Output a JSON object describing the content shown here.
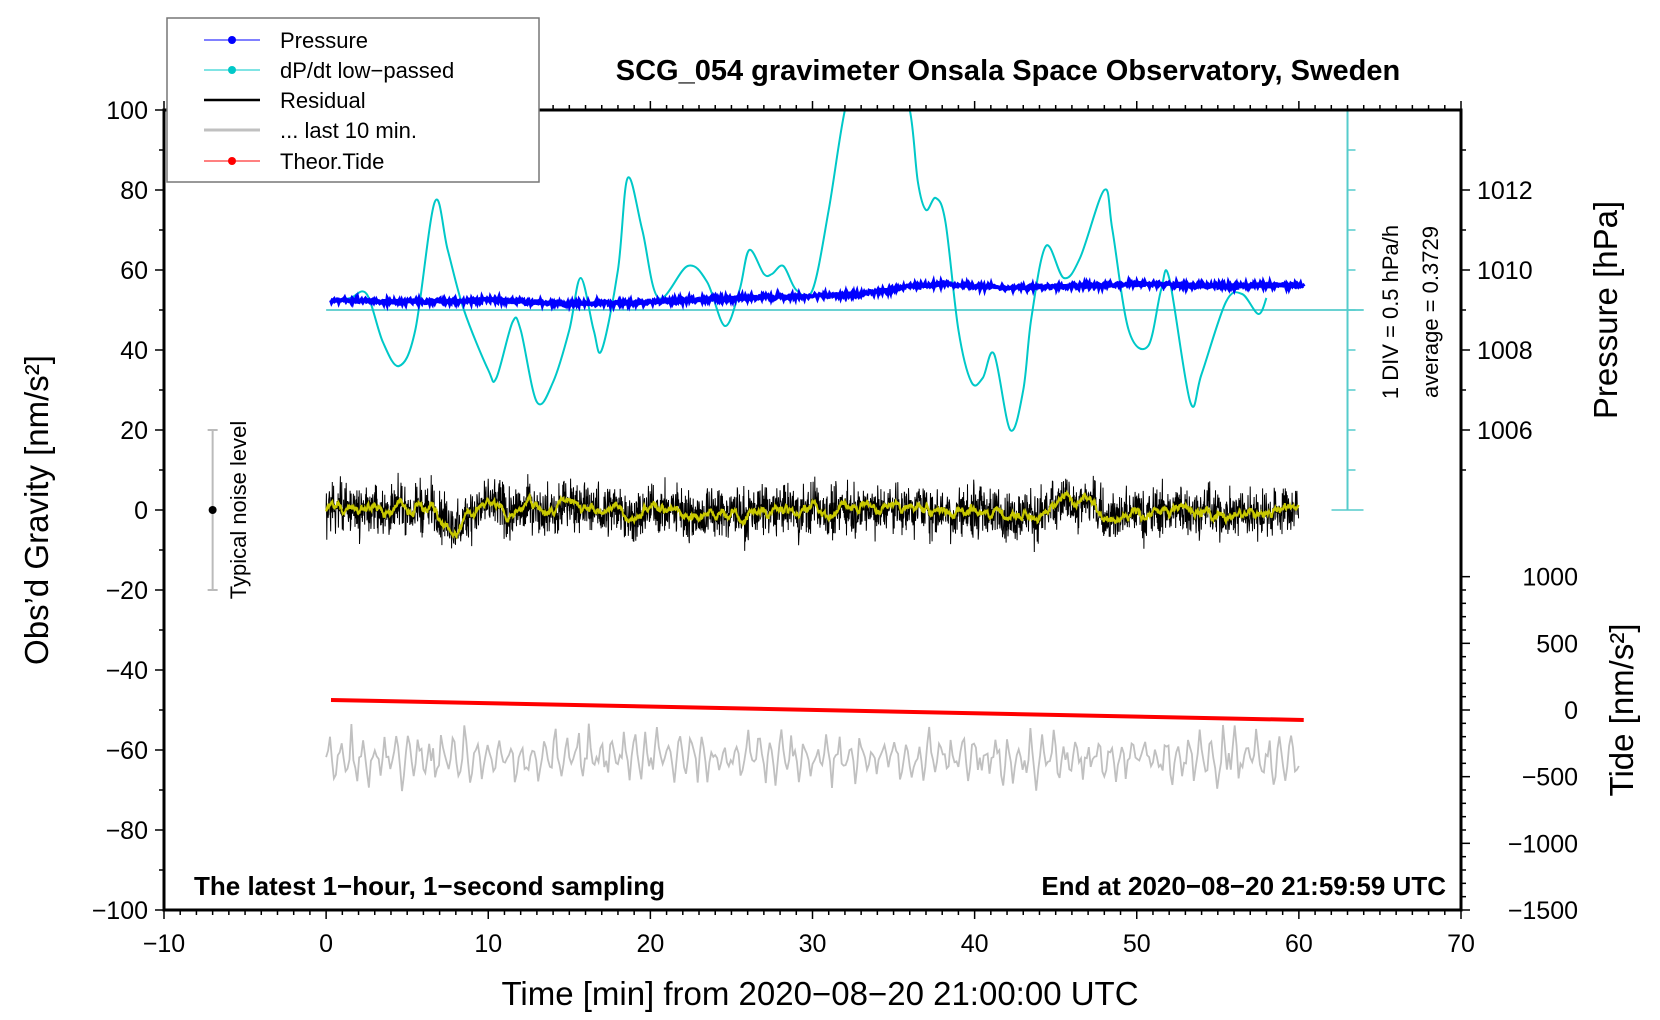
{
  "chart_data": {
    "type": "line",
    "title": "SCG_054 gravimeter Onsala Space Observatory, Sweden",
    "xlabel": "Time [min] from 2020−08−20 21:00:00 UTC",
    "ylabel": "Obs’d Gravity [nm/s²]",
    "ylabel_right_top": "Pressure [hPa]",
    "ylabel_right_bottom": "Tide [nm/s²]",
    "xlim": [
      -10,
      70
    ],
    "ylim": [
      -100,
      100
    ],
    "x_ticks": [
      "−10",
      "0",
      "10",
      "20",
      "30",
      "40",
      "50",
      "60",
      "70"
    ],
    "x_tick_values": [
      -10,
      0,
      10,
      20,
      30,
      40,
      50,
      60,
      70
    ],
    "y_ticks": [
      "100",
      "80",
      "60",
      "40",
      "20",
      "0",
      "−20",
      "−40",
      "−60",
      "−80",
      "−100"
    ],
    "y_tick_values": [
      100,
      80,
      60,
      40,
      20,
      0,
      -20,
      -40,
      -60,
      -80,
      -100
    ],
    "pressure_ticks": [
      "1012",
      "1010",
      "1008",
      "1006"
    ],
    "pressure_tick_values": [
      1012,
      1010,
      1008,
      1006
    ],
    "tide_ticks": [
      "1000",
      "500",
      "0",
      "−500",
      "−1000",
      "−1500"
    ],
    "tide_tick_values": [
      1000,
      500,
      0,
      -500,
      -1000,
      -1500
    ],
    "legend": {
      "placement": "top-left",
      "entries": [
        "Pressure",
        "dP/dt low−passed",
        "Residual",
        "... last 10 min.",
        "Theor.Tide"
      ]
    },
    "annotations": {
      "sampling": "The latest 1−hour, 1−second sampling",
      "end": "End at 2020−08−20 21:59:59 UTC",
      "div": "1 DIV = 0.5 hPa/h",
      "average": "average = 0.3729",
      "noise": "Typical noise level"
    },
    "series": [
      {
        "name": "Pressure",
        "unit": "hPa",
        "color": "#0000ff",
        "x": [
          0.3,
          5,
          10,
          15,
          20,
          25,
          30,
          33,
          36,
          38,
          42,
          46,
          50,
          55,
          60.3
        ],
        "y": [
          1009.25,
          1009.2,
          1009.25,
          1009.15,
          1009.2,
          1009.3,
          1009.35,
          1009.4,
          1009.6,
          1009.65,
          1009.55,
          1009.6,
          1009.65,
          1009.6,
          1009.62
        ]
      },
      {
        "name": "dP/dt low-passed",
        "unit": "gravity-axis units (1 DIV = 0.5 hPa/h, baseline 50)",
        "color": "#00c8c8",
        "x": [
          0.3,
          1.5,
          2.5,
          3.5,
          4.5,
          5.5,
          6.7,
          7.5,
          8.5,
          10,
          10.5,
          11.5,
          12,
          13,
          14,
          15,
          15.7,
          16.5,
          17,
          18,
          18.6,
          19.5,
          20.5,
          22.3,
          23.5,
          24.6,
          25.5,
          26.1,
          27,
          27.5,
          28.2,
          29,
          30,
          31,
          32,
          33,
          34,
          35,
          36,
          36.5,
          37,
          37.6,
          38.2,
          39,
          39.8,
          40.5,
          41.2,
          42.2,
          43,
          43.5,
          44.4,
          45.5,
          46.5,
          48,
          48.5,
          49.5,
          50.7,
          51.5,
          52,
          53.3,
          54,
          55.5,
          56.5,
          57.5,
          58
        ],
        "y": [
          52,
          53,
          54,
          42,
          36,
          45,
          77,
          65,
          50,
          35,
          33,
          47,
          45,
          27,
          32,
          45,
          58,
          45,
          40,
          60,
          83,
          70,
          53,
          61,
          57,
          46,
          55,
          65,
          59,
          59,
          61,
          55,
          55,
          75,
          100,
          112,
          115,
          110,
          100,
          82,
          75,
          78,
          72,
          45,
          32,
          33,
          39,
          20,
          30,
          48,
          66,
          58,
          63,
          80,
          70,
          45,
          41,
          55,
          58,
          27,
          34,
          52,
          54,
          49,
          53
        ]
      },
      {
        "name": "Residual",
        "color": "#000000",
        "x_range": [
          0,
          60
        ],
        "center": 0,
        "amplitude": 7
      },
      {
        "name": "... last 10 min.",
        "color": "#c0c0c0",
        "x_range": [
          0,
          60
        ],
        "center": -62,
        "amplitude": 6
      },
      {
        "name": "Theor.Tide",
        "unit": "nm/s²",
        "color": "#ff0000",
        "x": [
          0.3,
          60.3
        ],
        "y": [
          75,
          -75
        ]
      }
    ],
    "average_line": 50,
    "noise_level": [
      -20,
      20
    ]
  }
}
